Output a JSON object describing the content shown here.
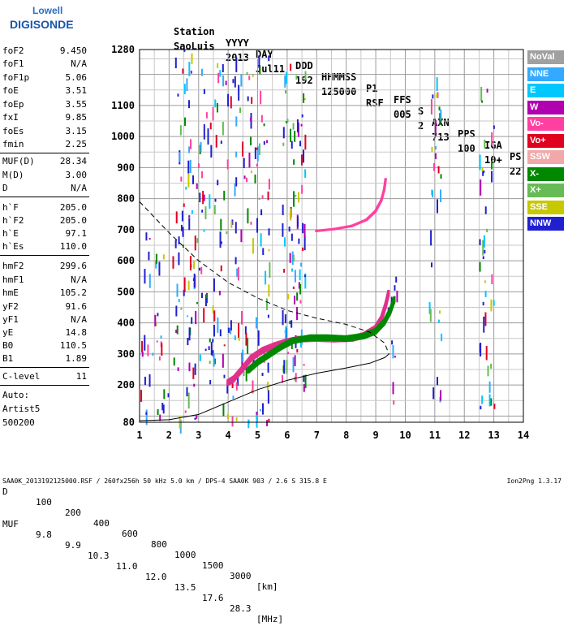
{
  "logo": {
    "line1": "Lowell",
    "line2": "DIGISONDE"
  },
  "header": {
    "labels": [
      "Station",
      "YYYY",
      "DAY",
      "DDD",
      "HHMMSS",
      "P1",
      "FFS",
      "S",
      "AXN",
      "PPS",
      "IGA",
      "PS"
    ],
    "values": [
      "SaoLuis",
      "2013",
      "Jul11",
      "192",
      "125000",
      "RSF",
      "005",
      "2",
      "713",
      "100",
      "10+",
      "22"
    ]
  },
  "params": {
    "group1": [
      {
        "k": "foF2",
        "v": "9.450"
      },
      {
        "k": "foF1",
        "v": "N/A"
      },
      {
        "k": "foF1p",
        "v": "5.06"
      },
      {
        "k": "foE",
        "v": "3.51"
      },
      {
        "k": "foEp",
        "v": "3.55"
      },
      {
        "k": "fxI",
        "v": "9.85"
      },
      {
        "k": "foEs",
        "v": "3.15"
      },
      {
        "k": "fmin",
        "v": "2.25"
      }
    ],
    "group2": [
      {
        "k": "MUF(D)",
        "v": "28.34"
      },
      {
        "k": "M(D)",
        "v": "3.00"
      },
      {
        "k": "D",
        "v": "N/A"
      }
    ],
    "group3": [
      {
        "k": "h`F",
        "v": "205.0"
      },
      {
        "k": "h`F2",
        "v": "205.0"
      },
      {
        "k": "h`E",
        "v": "97.1"
      },
      {
        "k": "h`Es",
        "v": "110.0"
      }
    ],
    "group4": [
      {
        "k": "hmF2",
        "v": "299.6"
      },
      {
        "k": "hmF1",
        "v": "N/A"
      },
      {
        "k": "hmE",
        "v": "105.2"
      },
      {
        "k": "yF2",
        "v": "91.6"
      },
      {
        "k": "yF1",
        "v": "N/A"
      },
      {
        "k": "yE",
        "v": "14.8"
      },
      {
        "k": "B0",
        "v": "110.5"
      },
      {
        "k": "B1",
        "v": "1.89"
      }
    ],
    "group5": [
      {
        "k": "C-level",
        "v": "11"
      }
    ]
  },
  "auto": {
    "line1": "Auto:",
    "line2": "Artist5",
    "line3": "500200"
  },
  "muf_table": {
    "d_label": "D",
    "d_values": [
      "100",
      "200",
      "400",
      "600",
      "800",
      "1000",
      "1500",
      "3000"
    ],
    "d_unit": "[km]",
    "muf_label": "MUF",
    "muf_values": [
      "9.8",
      "9.9",
      "10.3",
      "11.0",
      "12.0",
      "13.5",
      "17.6",
      "28.3"
    ],
    "muf_unit": "[MHz]"
  },
  "footer": {
    "info": "SAA0K_2013192125000.RSF / 260fx256h 50 kHz 5.0 km / DPS-4 SAA0K 903 / 2.6 S 315.8 E",
    "version": "Ion2Png 1.3.17"
  },
  "legend": [
    {
      "label": "NoVal",
      "color": "#a0a0a0"
    },
    {
      "label": "NNE",
      "color": "#33aaff"
    },
    {
      "label": "E",
      "color": "#00c8ff"
    },
    {
      "label": "W",
      "color": "#b000b0"
    },
    {
      "label": "Vo-",
      "color": "#ff40a0"
    },
    {
      "label": "Vo+",
      "color": "#e00020"
    },
    {
      "label": "SSW",
      "color": "#f0a8a8"
    },
    {
      "label": "X-",
      "color": "#008800"
    },
    {
      "label": "X+",
      "color": "#66bb55"
    },
    {
      "label": "SSE",
      "color": "#c8c800"
    },
    {
      "label": "NNW",
      "color": "#2020d0"
    }
  ],
  "chart_data": {
    "type": "scatter",
    "x_ticks": [
      "1",
      "2",
      "3",
      "4",
      "5",
      "6",
      "7",
      "8",
      "9",
      "10",
      "11",
      "12",
      "13",
      "14"
    ],
    "y_ticks": [
      "80",
      "200",
      "300",
      "400",
      "500",
      "600",
      "700",
      "800",
      "900",
      "1000",
      "1100",
      "1280"
    ],
    "xlim": [
      1,
      14
    ],
    "ylim": [
      80,
      1280
    ],
    "grid": true,
    "legend_position": "right",
    "series": [
      {
        "color": "#e0308a",
        "points": [
          [
            4.0,
            210
          ],
          [
            4.2,
            222
          ],
          [
            4.5,
            255
          ],
          [
            4.8,
            290
          ],
          [
            5.2,
            315
          ],
          [
            5.6,
            330
          ],
          [
            6.0,
            342
          ],
          [
            6.4,
            350
          ],
          [
            7.0,
            352
          ],
          [
            7.6,
            350
          ],
          [
            8.2,
            352
          ],
          [
            8.6,
            362
          ],
          [
            9.0,
            385
          ],
          [
            9.2,
            415
          ],
          [
            9.35,
            460
          ],
          [
            9.45,
            500
          ]
        ]
      },
      {
        "color": "#008800",
        "points": [
          [
            4.7,
            250
          ],
          [
            5.0,
            275
          ],
          [
            5.4,
            300
          ],
          [
            5.8,
            325
          ],
          [
            6.2,
            345
          ],
          [
            6.8,
            355
          ],
          [
            7.4,
            355
          ],
          [
            8.0,
            352
          ],
          [
            8.6,
            360
          ],
          [
            9.0,
            375
          ],
          [
            9.3,
            405
          ],
          [
            9.5,
            440
          ],
          [
            9.65,
            480
          ]
        ]
      },
      {
        "color": "#ff40a0",
        "points": [
          [
            7.0,
            692
          ],
          [
            7.6,
            698
          ],
          [
            8.2,
            708
          ],
          [
            8.7,
            728
          ],
          [
            9.0,
            755
          ],
          [
            9.2,
            790
          ],
          [
            9.3,
            825
          ],
          [
            9.35,
            860
          ]
        ]
      }
    ],
    "model_curves": [
      {
        "style": "solid",
        "points": [
          [
            1.0,
            85
          ],
          [
            2.0,
            88
          ],
          [
            3.0,
            105
          ],
          [
            4.0,
            145
          ],
          [
            5.0,
            185
          ],
          [
            6.0,
            215
          ],
          [
            7.0,
            238
          ],
          [
            8.0,
            255
          ],
          [
            8.8,
            270
          ],
          [
            9.3,
            288
          ],
          [
            9.45,
            299.6
          ]
        ]
      },
      {
        "style": "dashed",
        "points": [
          [
            1.0,
            790
          ],
          [
            2.0,
            690
          ],
          [
            3.0,
            600
          ],
          [
            4.0,
            530
          ],
          [
            5.0,
            480
          ],
          [
            6.0,
            440
          ],
          [
            7.0,
            415
          ],
          [
            8.0,
            395
          ],
          [
            8.8,
            370
          ],
          [
            9.3,
            335
          ],
          [
            9.45,
            299.6
          ]
        ]
      }
    ]
  }
}
